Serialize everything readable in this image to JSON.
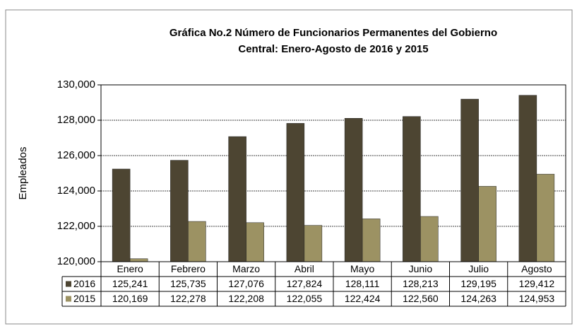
{
  "chart_data": {
    "type": "bar",
    "title": "Gráfica No.2 Número de Funcionarios Permanentes del Gobierno",
    "subtitle": "Central: Enero-Agosto de 2016 y 2015",
    "y_label": "Empleados",
    "categories": [
      "Enero",
      "Febrero",
      "Marzo",
      "Abril",
      "Mayo",
      "Junio",
      "Julio",
      "Agosto"
    ],
    "series": [
      {
        "name": "2016",
        "color": "#4d4532",
        "values": [
          125241,
          125735,
          127076,
          127824,
          128111,
          128213,
          129195,
          129412
        ],
        "value_labels": [
          "125,241",
          "125,735",
          "127,076",
          "127,824",
          "128,111",
          "128,213",
          "129,195",
          "129,412"
        ]
      },
      {
        "name": "2015",
        "color": "#9c9263",
        "values": [
          120169,
          122278,
          122208,
          122055,
          122424,
          122560,
          124263,
          124953
        ],
        "value_labels": [
          "120,169",
          "122,278",
          "122,208",
          "122,055",
          "122,424",
          "122,560",
          "124,263",
          "124,953"
        ]
      }
    ],
    "ylim": [
      120000,
      130000
    ],
    "yticks": [
      {
        "value": 120000,
        "label": "120,000"
      },
      {
        "value": 122000,
        "label": "122,000"
      },
      {
        "value": 124000,
        "label": "124,000"
      },
      {
        "value": 126000,
        "label": "126,000"
      },
      {
        "value": 128000,
        "label": "128,000"
      },
      {
        "value": 130000,
        "label": "130,000"
      }
    ],
    "grid": true
  }
}
